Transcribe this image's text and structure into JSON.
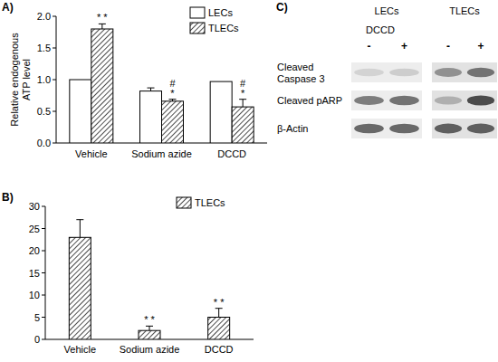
{
  "chart_data": [
    {
      "type": "bar",
      "title": "A)",
      "y_label": [
        "Relative endogenous",
        "ATP level"
      ],
      "categories": [
        "Vehicle",
        "Sodium azide",
        "DCCD"
      ],
      "series": [
        {
          "name": "LECs",
          "color": "#ffffff",
          "values": [
            1.0,
            0.82,
            0.97
          ],
          "errors": [
            null,
            0.05,
            null
          ]
        },
        {
          "name": "TLECs",
          "color": "#000000",
          "marker": "hatch",
          "values": [
            1.8,
            0.66,
            0.57
          ],
          "errors": [
            0.08,
            0.03,
            0.12
          ],
          "annotations": [
            [
              "* *"
            ],
            [
              "#",
              "*"
            ],
            [
              "#",
              "*"
            ]
          ]
        }
      ],
      "ylim": [
        0,
        2
      ],
      "yticks": [
        {
          "value": 0,
          "label": "0.0"
        },
        {
          "value": 0.5,
          "label": "0.5"
        },
        {
          "value": 1,
          "label": "1.0"
        },
        {
          "value": 1.5,
          "label": "1.5"
        },
        {
          "value": 2,
          "label": "2.0"
        }
      ],
      "legend": "upper right"
    },
    {
      "type": "bar",
      "title": "B)",
      "categories": [
        "Vehicle",
        "Sodium azide",
        "DCCD"
      ],
      "series": [
        {
          "name": "TLECs",
          "color": "#000000",
          "marker": "hatch",
          "values": [
            23,
            2,
            5
          ],
          "errors": [
            4,
            1,
            2
          ],
          "annotations": [
            [],
            [
              "* *"
            ],
            [
              "* *"
            ]
          ]
        }
      ],
      "ylim": [
        0,
        30
      ],
      "yticks": [
        0,
        5,
        10,
        15,
        20,
        25,
        30
      ],
      "legend": "upper right"
    }
  ],
  "blot": {
    "title": "C)",
    "treatment": "DCCD",
    "groups": [
      {
        "label": "LECs",
        "lanes": [
          "-",
          "+"
        ]
      },
      {
        "label": "TLECs",
        "lanes": [
          "-",
          "+"
        ]
      }
    ],
    "rows": [
      {
        "label": [
          "Cleaved",
          "Caspase 3"
        ]
      },
      {
        "label": [
          "Cleaved pARP"
        ]
      },
      {
        "label": [
          "β-Actin"
        ]
      }
    ]
  }
}
